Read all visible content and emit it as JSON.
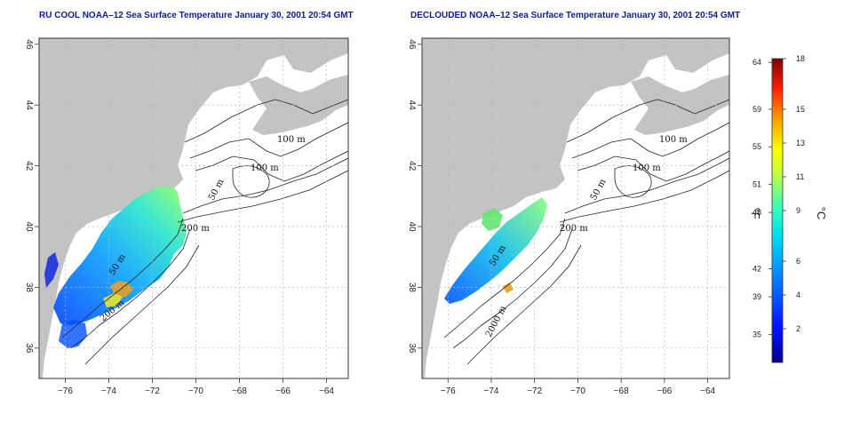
{
  "panels": [
    {
      "id": "left",
      "title": "RU COOL NOAA–12 Sea Surface Temperature January 30, 2001 20:54 GMT",
      "contours": [
        "100 m",
        "100 m",
        "50 m",
        "200 m",
        "50 m",
        "200 m"
      ]
    },
    {
      "id": "right",
      "title": "DECLOUDED NOAA–12 Sea Surface Temperature January 30, 2001 20:54 GMT",
      "contours": [
        "100 m",
        "100 m",
        "50 m",
        "200 m",
        "50 m",
        "2000 m"
      ]
    }
  ],
  "axes": {
    "lon_ticks": [
      "−76",
      "−74",
      "−72",
      "−70",
      "−68",
      "−66",
      "−64"
    ],
    "lat_ticks": [
      "36",
      "38",
      "40",
      "42",
      "44",
      "46"
    ],
    "lon_values": [
      -76,
      -74,
      -72,
      -70,
      -68,
      -66,
      -64
    ],
    "lat_values": [
      36,
      38,
      40,
      42,
      44,
      46
    ],
    "lon_range": [
      -77.2,
      -63.0
    ],
    "lat_range": [
      35.0,
      46.2
    ]
  },
  "colorbar": {
    "fahrenheit_ticks": [
      "64",
      "59",
      "55",
      "51",
      "48",
      "42",
      "39",
      "35"
    ],
    "fahrenheit_values": [
      64,
      59,
      55,
      51,
      48,
      42,
      39,
      35
    ],
    "celsius_ticks": [
      "18",
      "15",
      "13",
      "11",
      "9",
      "6",
      "4",
      "2"
    ],
    "celsius_values": [
      18,
      15,
      13,
      11,
      9,
      6,
      4,
      2
    ],
    "range_c": [
      0,
      18
    ],
    "unit_f": "°F",
    "unit_c": "°C"
  },
  "colors": {
    "land": "#c3c3c3",
    "title": "#0b1c9c",
    "grid": "#b5b5b5"
  }
}
